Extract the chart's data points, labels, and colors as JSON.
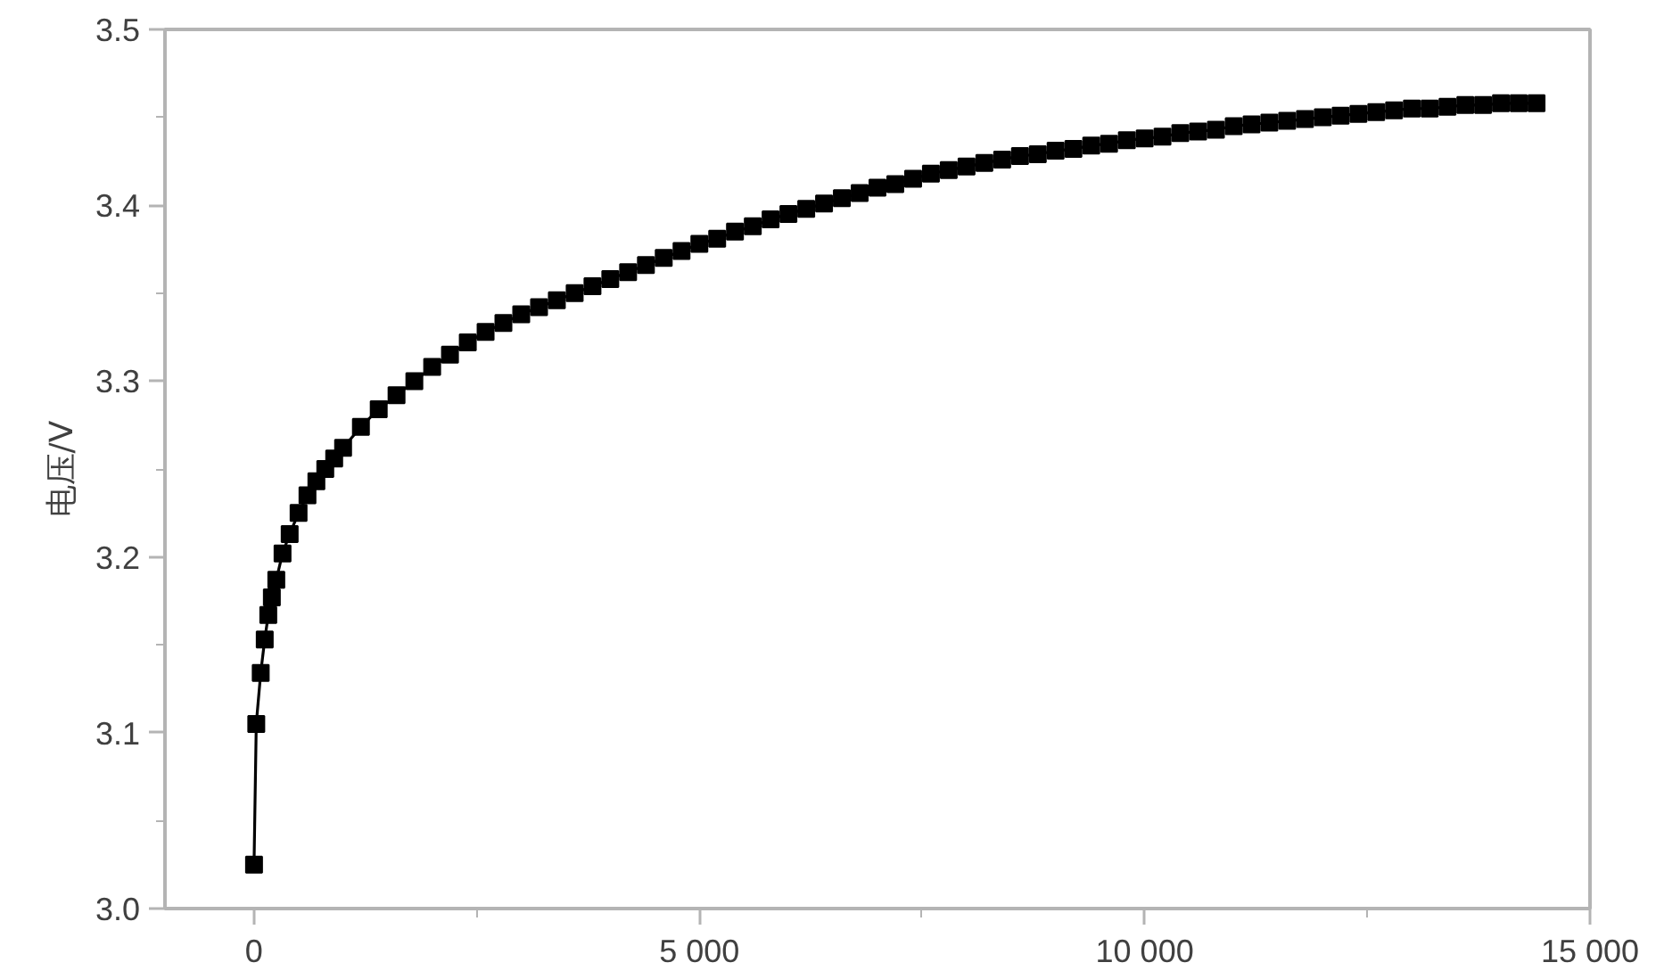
{
  "chart_data": {
    "type": "line",
    "ylabel": "电压/V",
    "color": "#000000",
    "marker": "square",
    "line_style": "solid",
    "grid": false,
    "x": [
      0,
      25,
      75,
      120,
      160,
      200,
      250,
      320,
      400,
      500,
      600,
      700,
      800,
      900,
      1000,
      1200,
      1400,
      1600,
      1800,
      2000,
      2200,
      2400,
      2600,
      2800,
      3000,
      3200,
      3400,
      3600,
      3800,
      4000,
      4200,
      4400,
      4600,
      4800,
      5000,
      5200,
      5400,
      5600,
      5800,
      6000,
      6200,
      6400,
      6600,
      6800,
      7000,
      7200,
      7400,
      7600,
      7800,
      8000,
      8200,
      8400,
      8600,
      8800,
      9000,
      9200,
      9400,
      9600,
      9800,
      10000,
      10200,
      10400,
      10600,
      10800,
      11000,
      11200,
      11400,
      11600,
      11800,
      12000,
      12200,
      12400,
      12600,
      12800,
      13000,
      13200,
      13400,
      13600,
      13800,
      14000,
      14200,
      14400
    ],
    "values": [
      3.025,
      3.105,
      3.134,
      3.153,
      3.167,
      3.177,
      3.187,
      3.202,
      3.213,
      3.225,
      3.235,
      3.243,
      3.25,
      3.256,
      3.262,
      3.274,
      3.284,
      3.292,
      3.3,
      3.308,
      3.315,
      3.322,
      3.328,
      3.333,
      3.338,
      3.342,
      3.346,
      3.35,
      3.354,
      3.358,
      3.362,
      3.366,
      3.37,
      3.374,
      3.378,
      3.381,
      3.385,
      3.388,
      3.392,
      3.395,
      3.398,
      3.401,
      3.404,
      3.407,
      3.41,
      3.412,
      3.415,
      3.418,
      3.42,
      3.422,
      3.424,
      3.426,
      3.428,
      3.429,
      3.431,
      3.432,
      3.434,
      3.435,
      3.437,
      3.438,
      3.439,
      3.441,
      3.442,
      3.443,
      3.445,
      3.446,
      3.447,
      3.448,
      3.449,
      3.45,
      3.451,
      3.452,
      3.453,
      3.454,
      3.455,
      3.455,
      3.456,
      3.457,
      3.457,
      3.458,
      3.458,
      3.458
    ],
    "xlim": [
      -1000,
      15000
    ],
    "ylim": [
      3.0,
      3.5
    ],
    "xticks": [
      0,
      {
        "value": 2500,
        "label": null
      },
      {
        "value": 5000,
        "label": "5 000"
      },
      {
        "value": 7500,
        "label": null
      },
      {
        "value": 10000,
        "label": "10 000"
      },
      {
        "value": 12500,
        "label": null
      },
      {
        "value": 15000,
        "label": "15 000"
      }
    ],
    "yticks": [
      {
        "value": 3,
        "label": "3.0"
      },
      {
        "value": 3.05,
        "label": null
      },
      3.1,
      {
        "value": 3.15,
        "label": null
      },
      3.2,
      {
        "value": 3.25,
        "label": null
      },
      3.3,
      {
        "value": 3.35,
        "label": null
      },
      3.4,
      {
        "value": 3.45,
        "label": null
      },
      3.5
    ]
  }
}
